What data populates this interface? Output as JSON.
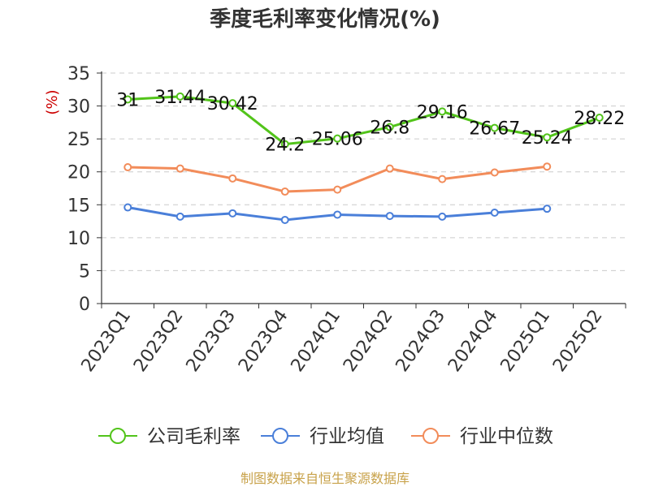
{
  "chart_data": {
    "type": "line",
    "title": "季度毛利率变化情况(%)",
    "ylabel": "(%)",
    "ylim": [
      0,
      35
    ],
    "yticks": [
      0,
      5,
      10,
      15,
      20,
      25,
      30,
      35
    ],
    "grid": true,
    "legend_position": "bottom",
    "categories": [
      "2023Q1",
      "2023Q2",
      "2023Q3",
      "2023Q4",
      "2024Q1",
      "2024Q2",
      "2024Q3",
      "2024Q4",
      "2025Q1",
      "2025Q2"
    ],
    "series": [
      {
        "name": "公司毛利率",
        "color": "#52c41a",
        "values": [
          31,
          31.44,
          30.42,
          24.2,
          25.06,
          26.8,
          29.16,
          26.67,
          25.24,
          28.22
        ],
        "labels": [
          "31",
          "31.44",
          "30.42",
          "24.2",
          "25.06",
          "26.8",
          "29.16",
          "26.67",
          "25.24",
          "28.22"
        ]
      },
      {
        "name": "行业均值",
        "color": "#4a7fd9",
        "values": [
          14.6,
          13.2,
          13.7,
          12.7,
          13.5,
          13.3,
          13.2,
          13.8,
          14.4,
          null
        ]
      },
      {
        "name": "行业中位数",
        "color": "#f28c5a",
        "values": [
          20.7,
          20.5,
          19.0,
          17.0,
          17.3,
          20.5,
          18.9,
          19.9,
          20.8,
          null
        ]
      }
    ]
  },
  "source": "制图数据来自恒生聚源数据库",
  "colors": {
    "axis": "#333333",
    "grid": "#cccccc",
    "unit": "#cc0000"
  }
}
